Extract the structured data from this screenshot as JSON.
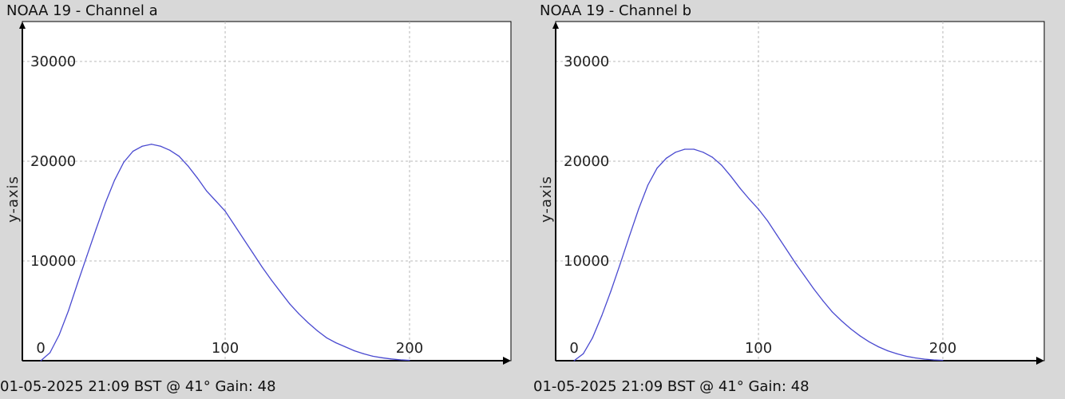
{
  "colors": {
    "background": "#d8d8d8",
    "plot_area": "#ffffff",
    "series_line": "#4a4ad0",
    "grid": "#b8b8b8",
    "axis": "#000000"
  },
  "charts": [
    {
      "title": "NOAA 19 - Channel a",
      "footer": "01-05-2025 21:09 BST @ 41° Gain: 48",
      "ylabel": "y-axis"
    },
    {
      "title": "NOAA 19 - Channel b",
      "footer": "01-05-2025 21:09 BST @ 41° Gain: 48",
      "ylabel": "y-axis"
    }
  ],
  "chart_data": [
    {
      "type": "line",
      "title": "NOAA 19 - Channel a",
      "xlabel": "",
      "ylabel": "y-axis",
      "xlim": [
        -10,
        255
      ],
      "ylim": [
        0,
        34000
      ],
      "x_ticks": [
        0,
        100,
        200
      ],
      "y_ticks": [
        10000,
        20000,
        30000
      ],
      "x_tick_labels": [
        "0",
        "100",
        "200"
      ],
      "y_tick_labels": [
        "10000",
        "20000",
        "30000"
      ],
      "grid": true,
      "x": [
        0,
        5,
        10,
        15,
        20,
        25,
        30,
        35,
        40,
        45,
        50,
        55,
        60,
        65,
        70,
        75,
        80,
        85,
        90,
        95,
        100,
        105,
        110,
        115,
        120,
        125,
        130,
        135,
        140,
        145,
        150,
        155,
        160,
        165,
        170,
        175,
        180,
        185,
        190,
        195,
        200
      ],
      "values": [
        0,
        800,
        2600,
        5000,
        7800,
        10500,
        13200,
        15800,
        18100,
        19900,
        21000,
        21500,
        21700,
        21500,
        21100,
        20500,
        19500,
        18300,
        17000,
        16000,
        15000,
        13600,
        12200,
        10800,
        9400,
        8100,
        6900,
        5700,
        4700,
        3800,
        3000,
        2300,
        1800,
        1400,
        1000,
        700,
        450,
        300,
        180,
        90,
        40
      ]
    },
    {
      "type": "line",
      "title": "NOAA 19 - Channel b",
      "xlabel": "",
      "ylabel": "y-axis",
      "xlim": [
        -10,
        255
      ],
      "ylim": [
        0,
        34000
      ],
      "x_ticks": [
        0,
        100,
        200
      ],
      "y_ticks": [
        10000,
        20000,
        30000
      ],
      "x_tick_labels": [
        "0",
        "100",
        "200"
      ],
      "y_tick_labels": [
        "10000",
        "20000",
        "30000"
      ],
      "grid": true,
      "x": [
        0,
        5,
        10,
        15,
        20,
        25,
        30,
        35,
        40,
        45,
        50,
        55,
        60,
        65,
        70,
        75,
        80,
        85,
        90,
        95,
        100,
        105,
        110,
        115,
        120,
        125,
        130,
        135,
        140,
        145,
        150,
        155,
        160,
        165,
        170,
        175,
        180,
        185,
        190,
        195,
        200
      ],
      "values": [
        0,
        700,
        2300,
        4500,
        7000,
        9700,
        12500,
        15200,
        17600,
        19300,
        20300,
        20900,
        21200,
        21200,
        20900,
        20400,
        19600,
        18500,
        17300,
        16200,
        15200,
        14000,
        12600,
        11200,
        9800,
        8500,
        7200,
        6000,
        4900,
        4000,
        3200,
        2500,
        1900,
        1400,
        1000,
        700,
        450,
        280,
        160,
        80,
        40
      ]
    }
  ]
}
